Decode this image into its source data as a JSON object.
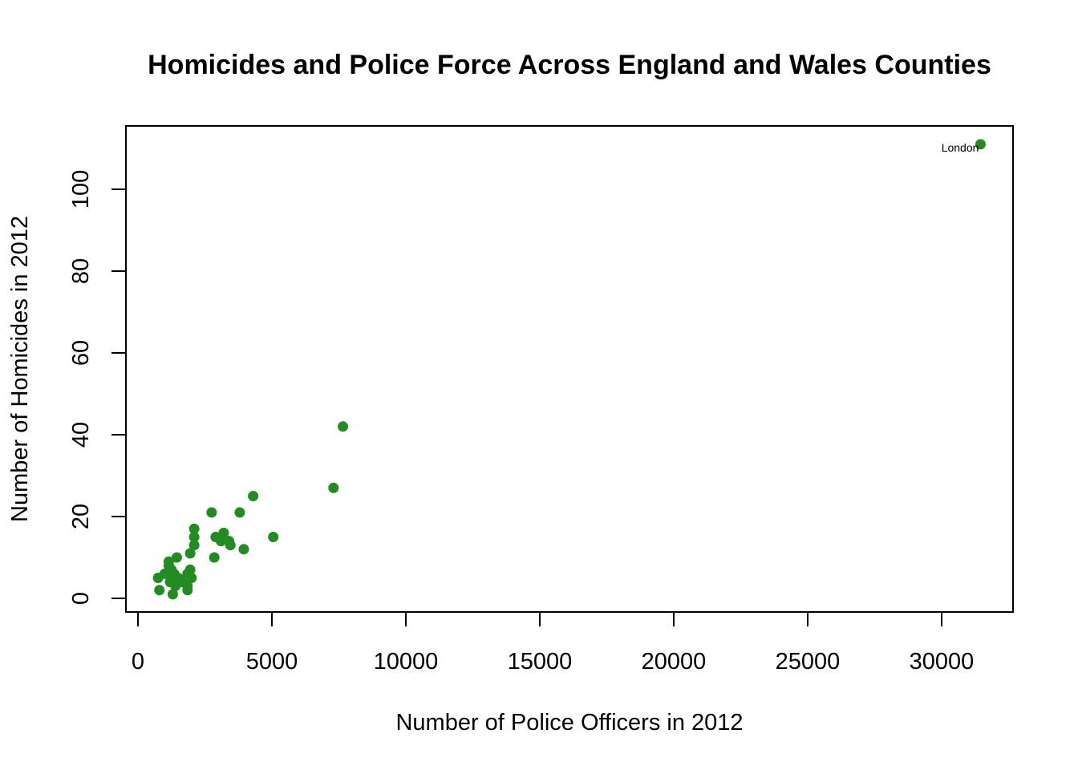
{
  "chart_data": {
    "type": "scatter",
    "title": "Homicides and Police Force Across England and Wales Counties",
    "xlabel": "Number of Police Officers in 2012",
    "ylabel": "Number of Homicides in 2012",
    "xlim": [
      0,
      32500
    ],
    "ylim": [
      0,
      111
    ],
    "xticks": [
      0,
      5000,
      10000,
      15000,
      20000,
      25000,
      30000
    ],
    "xtick_labels": [
      "0",
      "5000",
      "10000",
      "15000",
      "20000",
      "25000",
      "30000"
    ],
    "yticks": [
      0,
      20,
      40,
      60,
      80,
      100
    ],
    "ytick_labels": [
      "0",
      "20",
      "40",
      "60",
      "80",
      "100"
    ],
    "grid": false,
    "legend": "none",
    "point_color": "#228B22",
    "points": [
      {
        "x": 31450,
        "y": 111,
        "label": "London"
      },
      {
        "x": 7650,
        "y": 42
      },
      {
        "x": 7300,
        "y": 27
      },
      {
        "x": 4300,
        "y": 25
      },
      {
        "x": 5050,
        "y": 15
      },
      {
        "x": 2750,
        "y": 21
      },
      {
        "x": 3800,
        "y": 21
      },
      {
        "x": 2100,
        "y": 17
      },
      {
        "x": 3200,
        "y": 16
      },
      {
        "x": 2900,
        "y": 15
      },
      {
        "x": 2100,
        "y": 15
      },
      {
        "x": 3100,
        "y": 14
      },
      {
        "x": 3400,
        "y": 14
      },
      {
        "x": 3450,
        "y": 13
      },
      {
        "x": 2100,
        "y": 13
      },
      {
        "x": 3950,
        "y": 12
      },
      {
        "x": 1950,
        "y": 11
      },
      {
        "x": 2850,
        "y": 10
      },
      {
        "x": 1450,
        "y": 10
      },
      {
        "x": 1150,
        "y": 9
      },
      {
        "x": 1150,
        "y": 8
      },
      {
        "x": 1250,
        "y": 7
      },
      {
        "x": 1950,
        "y": 7
      },
      {
        "x": 1000,
        "y": 6
      },
      {
        "x": 1350,
        "y": 6
      },
      {
        "x": 1850,
        "y": 6
      },
      {
        "x": 750,
        "y": 5
      },
      {
        "x": 1250,
        "y": 5
      },
      {
        "x": 1500,
        "y": 5
      },
      {
        "x": 2000,
        "y": 5
      },
      {
        "x": 1200,
        "y": 4
      },
      {
        "x": 1650,
        "y": 4
      },
      {
        "x": 1400,
        "y": 3
      },
      {
        "x": 1850,
        "y": 3
      },
      {
        "x": 800,
        "y": 2
      },
      {
        "x": 1850,
        "y": 2
      },
      {
        "x": 1300,
        "y": 1
      }
    ]
  }
}
